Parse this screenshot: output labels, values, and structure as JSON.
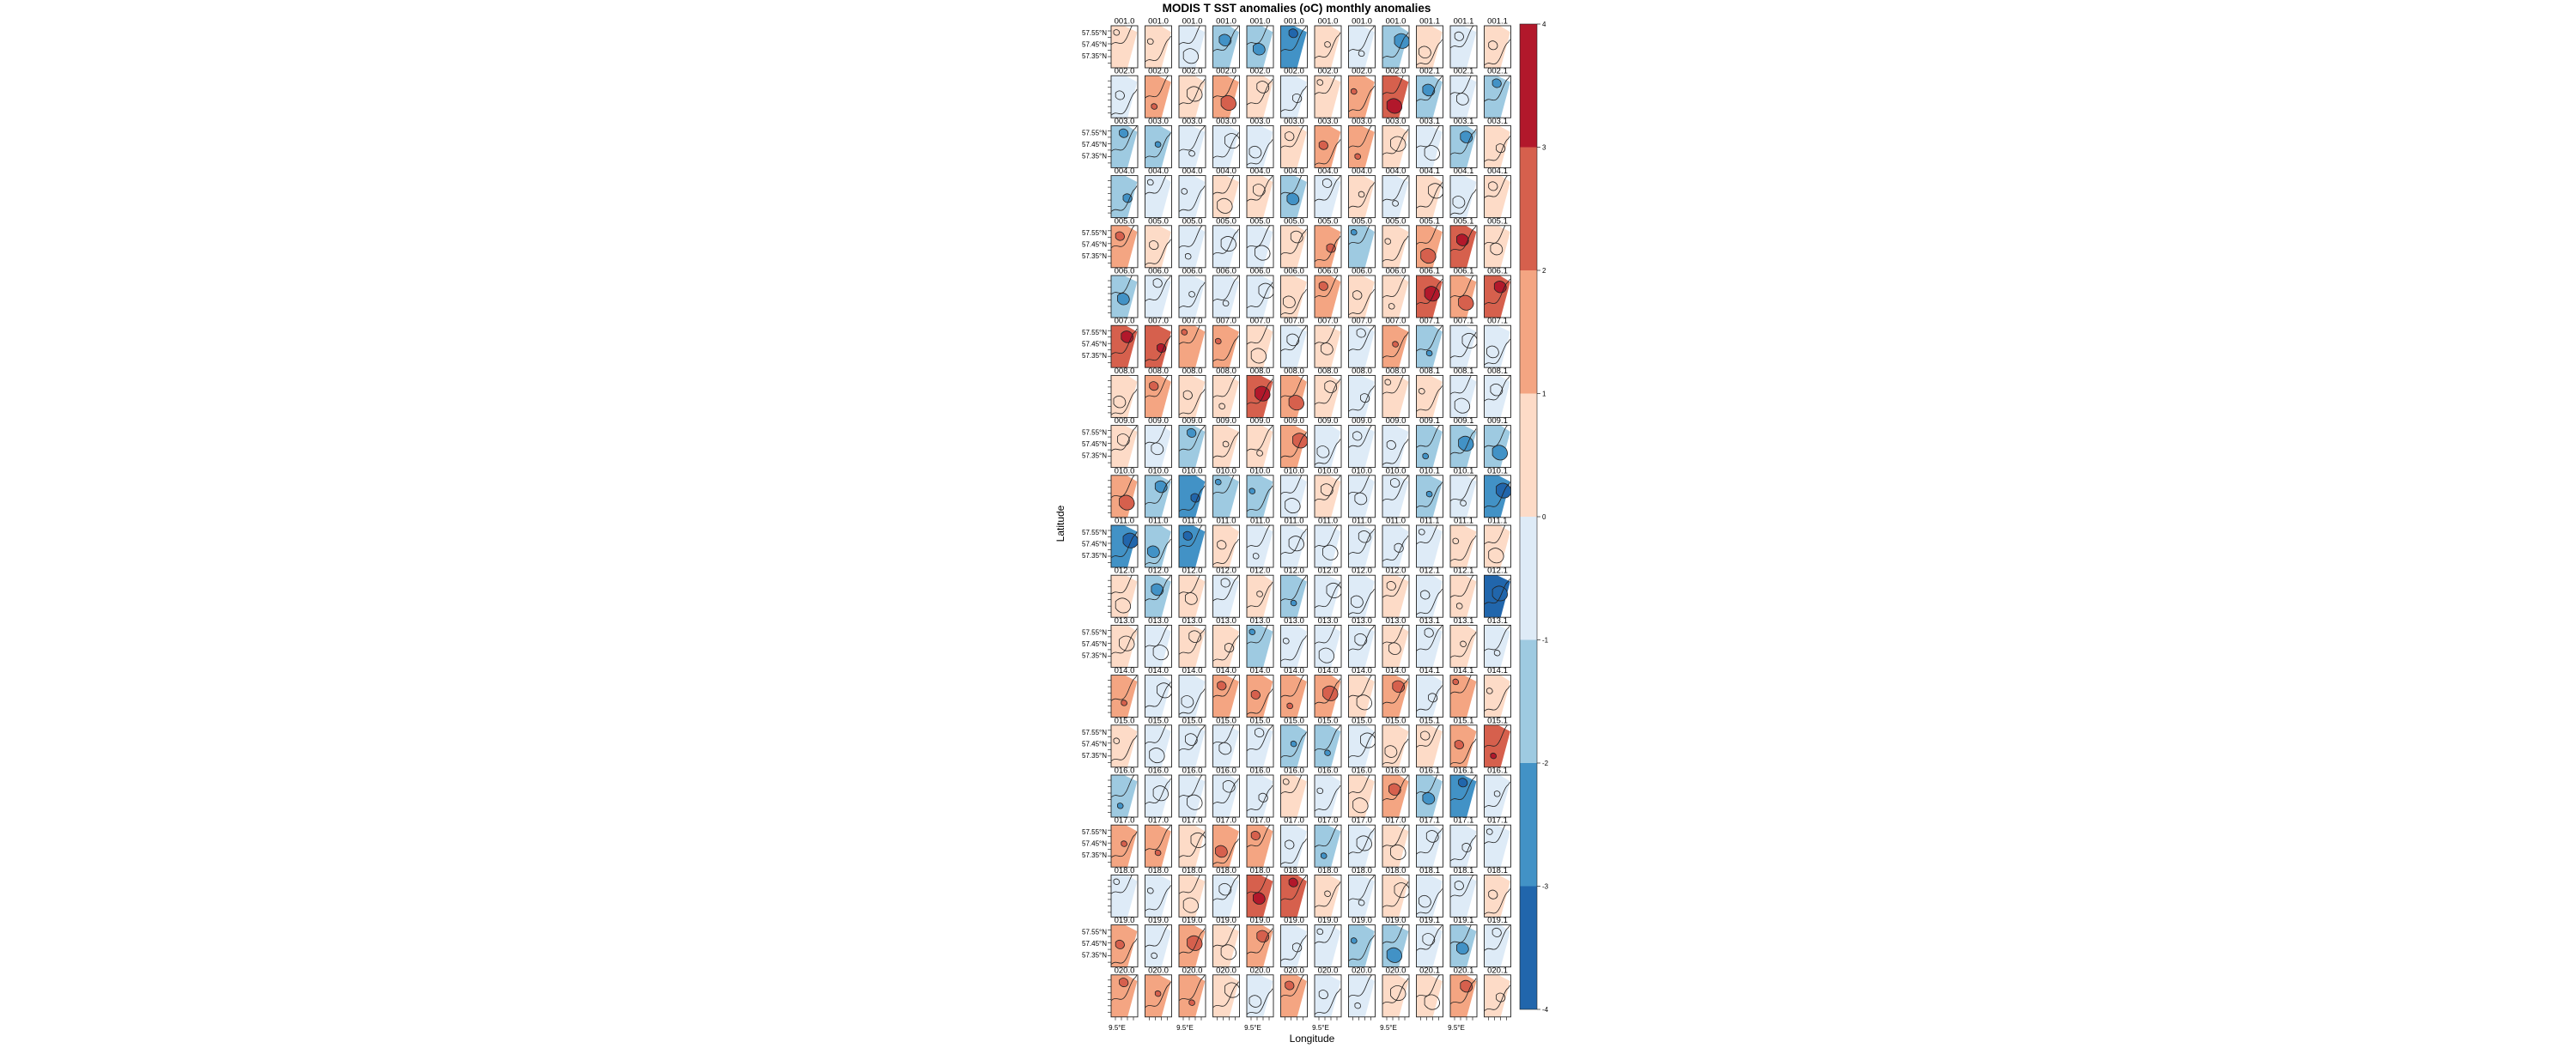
{
  "chart_data": {
    "type": "heatmap",
    "title": "MODIS T SST anomalies (oC) monthly anomalies",
    "xlabel": "Longitude",
    "ylabel": "Latitude",
    "panel_grid": {
      "rows": 20,
      "cols": 12
    },
    "row_labels": [
      "001",
      "002",
      "003",
      "004",
      "005",
      "006",
      "007",
      "008",
      "009",
      "010",
      "011",
      "012",
      "013",
      "014",
      "015",
      "016",
      "017",
      "018",
      "019",
      "020"
    ],
    "col_suffix": [
      ".0",
      ".0",
      ".0",
      ".0",
      ".0",
      ".0",
      ".0",
      ".0",
      ".0",
      ".1",
      ".1",
      ".1"
    ],
    "lat_tick_labels": [
      "57.55°N",
      "57.45°N",
      "57.35°N"
    ],
    "lon_tick_label": "9.5°E",
    "colorbar": {
      "ticks": [
        "4",
        "3",
        "2",
        "1",
        "0",
        "-1",
        "-2",
        "-3",
        "-4"
      ],
      "range": [
        -4,
        4
      ],
      "bins": [
        {
          "from": 3,
          "to": 4,
          "color": "#b2182b"
        },
        {
          "from": 2,
          "to": 3,
          "color": "#d6604d"
        },
        {
          "from": 1,
          "to": 2,
          "color": "#f4a582"
        },
        {
          "from": 0,
          "to": 1,
          "color": "#fddbc7"
        },
        {
          "from": -1,
          "to": 0,
          "color": "#deebf7"
        },
        {
          "from": -2,
          "to": -1,
          "color": "#9ecae1"
        },
        {
          "from": -3,
          "to": -2,
          "color": "#4292c6"
        },
        {
          "from": -4,
          "to": -3,
          "color": "#2166ac"
        }
      ]
    },
    "panel_mean_anomaly": [
      [
        0.4,
        0.3,
        -0.3,
        -1.2,
        -1.5,
        -2.6,
        0.2,
        -0.4,
        -1.8,
        0.5,
        -0.2,
        0.4
      ],
      [
        -0.7,
        1.2,
        0.6,
        1.4,
        0.4,
        -0.3,
        0.8,
        1.1,
        2.2,
        -1.9,
        -0.6,
        -1.5
      ],
      [
        -1.3,
        -1.2,
        -0.4,
        -0.2,
        -0.4,
        0.9,
        1.6,
        1.7,
        0.8,
        -0.3,
        -1.1,
        0.6
      ],
      [
        -1.4,
        -0.3,
        -0.4,
        0.4,
        0.2,
        -1.2,
        -0.8,
        0.4,
        -0.3,
        0.6,
        -0.3,
        0.5
      ],
      [
        1.4,
        0.8,
        -0.6,
        -0.5,
        -0.2,
        0.7,
        1.1,
        -1.3,
        0.4,
        1.3,
        2.4,
        0.7
      ],
      [
        -1.6,
        -0.7,
        -0.9,
        -0.8,
        -0.3,
        0.6,
        1.2,
        0.6,
        0.4,
        2.6,
        1.9,
        2.3
      ],
      [
        2.4,
        2.2,
        1.2,
        1.3,
        0.4,
        -0.4,
        0.5,
        -0.4,
        1.8,
        -1.4,
        -0.5,
        -0.2
      ],
      [
        0.4,
        1.2,
        0.6,
        0.4,
        2.6,
        1.3,
        0.8,
        -0.2,
        0.3,
        0.6,
        -0.3,
        -0.4
      ],
      [
        0.3,
        -0.3,
        -1.2,
        0.5,
        0.6,
        1.3,
        -0.6,
        -0.3,
        -0.3,
        -1.3,
        -1.6,
        -1.8
      ],
      [
        1.1,
        -1.7,
        -2.6,
        -1.4,
        -1.3,
        -0.4,
        0.3,
        -0.4,
        -0.6,
        -1.1,
        -0.3,
        -2.1
      ],
      [
        -2.8,
        -1.8,
        -2.2,
        0.9,
        -0.7,
        -0.4,
        -0.3,
        -0.4,
        -0.4,
        -0.3,
        0.5,
        0.6
      ],
      [
        0.6,
        -1.3,
        0.4,
        -0.4,
        0.3,
        -1.3,
        -0.6,
        -0.3,
        0.4,
        -0.3,
        0.5,
        -3.1
      ],
      [
        0.2,
        -0.4,
        0.6,
        0.3,
        -1.4,
        -0.6,
        -0.4,
        -0.3,
        0.4,
        -0.3,
        0.5,
        -0.5
      ],
      [
        1.3,
        -0.3,
        -0.4,
        1.2,
        1.3,
        1.2,
        1.1,
        0.4,
        1.3,
        -0.4,
        1.2,
        0.7
      ],
      [
        0.3,
        -0.3,
        -0.4,
        -0.2,
        -0.4,
        -1.4,
        -1.5,
        -0.6,
        0.4,
        0.4,
        1.4,
        2.4
      ],
      [
        -1.2,
        -0.3,
        -0.4,
        -0.3,
        -0.3,
        0.4,
        -0.4,
        0.5,
        1.2,
        -1.4,
        -2.1,
        -0.5
      ],
      [
        1.3,
        1.2,
        0.5,
        1.3,
        1.2,
        -0.3,
        -1.3,
        -0.4,
        0.8,
        -0.3,
        -0.4,
        -0.3
      ],
      [
        -0.3,
        -0.4,
        0.4,
        -0.2,
        2.3,
        2.6,
        0.7,
        -0.4,
        0.5,
        -0.3,
        -0.4,
        0.4
      ],
      [
        1.2,
        -0.4,
        1.3,
        0.6,
        1.2,
        -0.4,
        -0.3,
        -1.4,
        -1.2,
        -0.4,
        -1.7,
        -0.3
      ],
      [
        1.4,
        1.3,
        1.2,
        0.5,
        -0.4,
        1.4,
        -0.3,
        -0.4,
        0.4,
        0.4,
        1.2,
        0.6
      ]
    ]
  }
}
